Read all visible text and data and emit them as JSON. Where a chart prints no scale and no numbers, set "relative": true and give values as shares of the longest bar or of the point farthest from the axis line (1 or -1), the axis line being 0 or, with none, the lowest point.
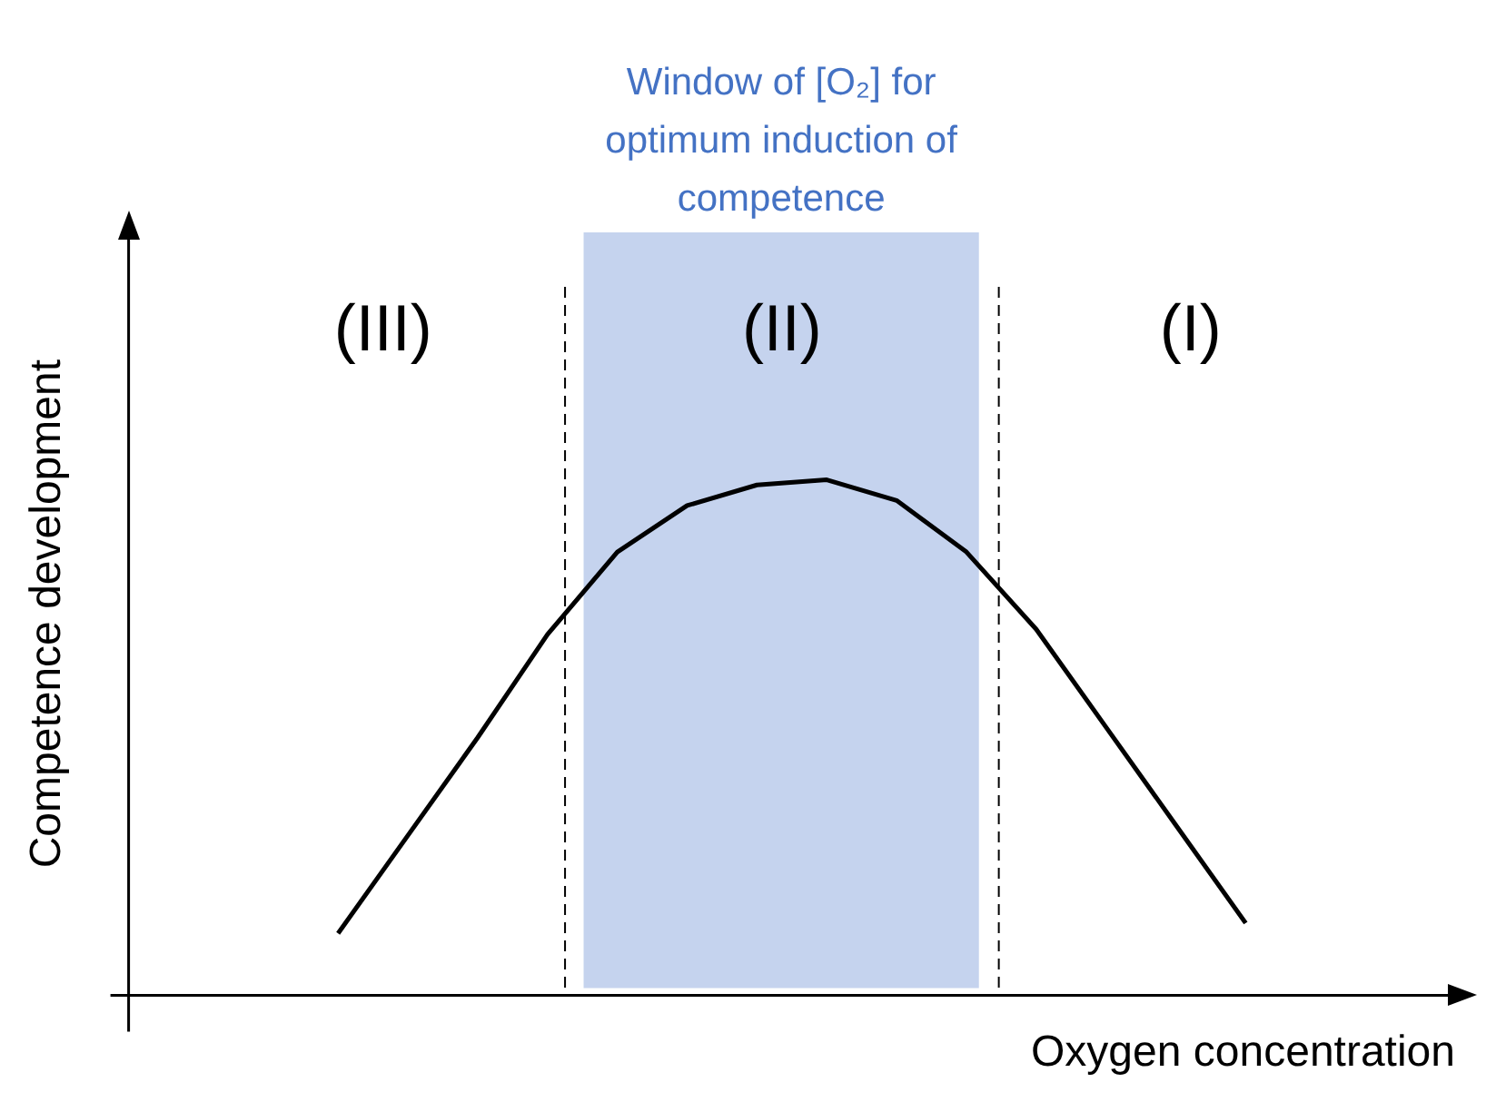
{
  "chart_data": {
    "type": "line",
    "relative": true,
    "xlabel": "Oxygen concentration",
    "ylabel": "Competence development",
    "categories": [
      null,
      null,
      null,
      null,
      null,
      null,
      null,
      null,
      null,
      null,
      null,
      null,
      null,
      null,
      null,
      null,
      null,
      null,
      null,
      null
    ],
    "series": [
      {
        "color": "#000000",
        "values": [
          null,
          null,
          null,
          0.12,
          0.31,
          0.5,
          0.7,
          0.86,
          0.95,
          0.99,
          1.0,
          0.96,
          0.86,
          0.71,
          0.52,
          0.33,
          0.14,
          null,
          null,
          null
        ]
      }
    ],
    "legend": false,
    "marker": "none",
    "line_style": "solid",
    "annotations": [
      "Window of [O₂] for optimum induction of competence",
      "(III)",
      "(II)",
      "(I)"
    ]
  }
}
